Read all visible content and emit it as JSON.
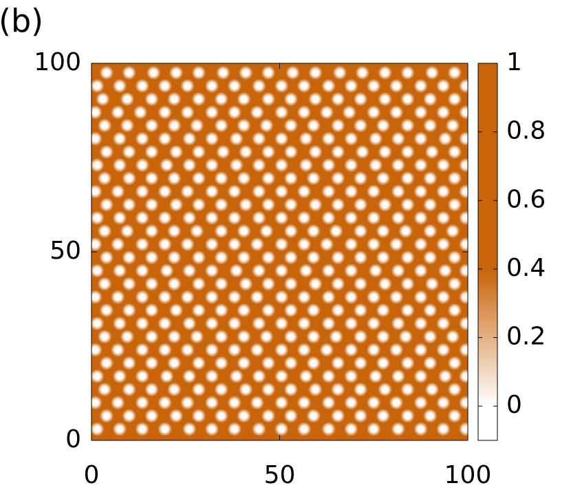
{
  "chart_data": {
    "type": "heatmap",
    "title": "(b)",
    "color": "#c86409",
    "xlim": [
      0,
      100
    ],
    "xticks": [
      0,
      50,
      100
    ],
    "ylim": [
      0,
      100
    ],
    "yticks": [
      0,
      50,
      100
    ],
    "zlim": [
      -0.1,
      1
    ],
    "zticks": [
      0,
      0.2,
      0.4,
      0.6,
      0.8,
      1
    ],
    "colormap": [
      {
        "value": 0,
        "color": "#ffffff"
      },
      {
        "value": 0.4,
        "color": "#c86409"
      }
    ],
    "spot_rows": [
      {
        "y": 97.5,
        "x": [
          4,
          10,
          16.5,
          22.5,
          28.5,
          35,
          41,
          47,
          53.5,
          59.5,
          66,
          72,
          78,
          84,
          90.5,
          96.5
        ]
      },
      {
        "y": 94,
        "x": [
          1.5,
          7.5,
          13.5,
          19.5,
          25.5,
          32,
          38,
          44.5,
          50.5,
          56.5,
          63,
          69,
          75,
          81,
          87.5,
          93.5,
          99.5
        ]
      },
      {
        "y": 90.5,
        "x": [
          3,
          9.5,
          16,
          22,
          28.5,
          34.5,
          40.5,
          47,
          53,
          59.5,
          65.5,
          71.5,
          78,
          84,
          90,
          96.5
        ]
      },
      {
        "y": 87,
        "x": [
          1,
          7,
          13,
          19.5,
          25.5,
          32,
          38,
          44,
          50.5,
          56.5,
          62.5,
          68.5,
          75,
          81,
          87.5,
          93.5,
          99.5
        ]
      },
      {
        "y": 83.5,
        "x": [
          3.5,
          9.5,
          16,
          22,
          28,
          34.5,
          40.5,
          46.5,
          53,
          59,
          65.5,
          71.5,
          77.5,
          84,
          90,
          96
        ]
      },
      {
        "y": 80,
        "x": [
          1,
          7.5,
          13.5,
          19.5,
          26,
          32,
          38.5,
          44.5,
          50.5,
          57,
          63,
          69,
          75.5,
          81.5,
          87.5,
          94,
          99.5
        ]
      },
      {
        "y": 76.5,
        "x": [
          4,
          10,
          16,
          22.5,
          28.5,
          35,
          41,
          47,
          53,
          59.5,
          65.5,
          72,
          78,
          84,
          90.5,
          96.5
        ]
      },
      {
        "y": 73,
        "x": [
          1.5,
          7.5,
          13.5,
          20,
          26,
          32,
          38.5,
          44.5,
          50.5,
          57,
          63,
          69,
          75.5,
          81.5,
          87.5,
          93.5,
          99.5
        ]
      },
      {
        "y": 69.5,
        "x": [
          3.5,
          10,
          16,
          22,
          28.5,
          34.5,
          40.5,
          47,
          53,
          59,
          65.5,
          71.5,
          77.5,
          84,
          90,
          96.5
        ]
      },
      {
        "y": 66,
        "x": [
          1,
          7,
          13.5,
          19.5,
          25.5,
          32,
          38,
          44.5,
          50.5,
          56.5,
          63,
          69,
          75,
          81.5,
          87.5,
          93.5,
          99.5
        ]
      },
      {
        "y": 62.5,
        "x": [
          4,
          10,
          16,
          22.5,
          28.5,
          34.5,
          41,
          47,
          53,
          59.5,
          65.5,
          71.5,
          78,
          84,
          90,
          96.5
        ]
      },
      {
        "y": 59,
        "x": [
          1.5,
          7.5,
          13.5,
          19.5,
          26,
          32,
          38,
          44.5,
          50.5,
          56.5,
          63,
          69,
          75,
          81.5,
          87.5,
          93.5,
          99.5
        ]
      },
      {
        "y": 55.5,
        "x": [
          3.5,
          9.5,
          16,
          22,
          28,
          34.5,
          40.5,
          46.5,
          53,
          59,
          65,
          71.5,
          77.5,
          83.5,
          90,
          96
        ]
      },
      {
        "y": 52,
        "x": [
          1,
          7,
          13.5,
          19.5,
          25.5,
          32,
          38,
          44,
          50.5,
          56.5,
          62.5,
          69,
          75,
          81,
          87.5,
          93.5,
          99.5
        ]
      },
      {
        "y": 48.5,
        "x": [
          4,
          10,
          16,
          22,
          28.5,
          34.5,
          40.5,
          47,
          53,
          59,
          65.5,
          71.5,
          77.5,
          84,
          90,
          96.5
        ]
      },
      {
        "y": 45,
        "x": [
          1.5,
          7.5,
          13.5,
          20,
          26,
          32,
          38.5,
          44.5,
          50.5,
          57,
          63,
          69,
          75.5,
          81.5,
          87.5,
          94,
          99.5
        ]
      },
      {
        "y": 41.5,
        "x": [
          3.5,
          10,
          16,
          22,
          28.5,
          34.5,
          41,
          47,
          53,
          59.5,
          65.5,
          71.5,
          78,
          84,
          90.5,
          96.5
        ]
      },
      {
        "y": 38,
        "x": [
          1,
          7,
          13.5,
          19.5,
          25.5,
          32,
          38,
          44,
          50.5,
          56.5,
          63,
          69,
          75,
          81,
          87.5,
          93.5,
          99.5
        ]
      },
      {
        "y": 34.5,
        "x": [
          4,
          10,
          16,
          22.5,
          28.5,
          34.5,
          40.5,
          47,
          53,
          59,
          65.5,
          71.5,
          77.5,
          84,
          90,
          96.5
        ]
      },
      {
        "y": 31,
        "x": [
          1.5,
          7.5,
          13.5,
          19.5,
          26,
          32,
          38,
          44.5,
          50.5,
          56.5,
          63,
          69,
          75,
          81.5,
          87.5,
          93.5,
          99.5
        ]
      },
      {
        "y": 27.5,
        "x": [
          3.5,
          9.5,
          16,
          22,
          28,
          34.5,
          40.5,
          46.5,
          53,
          59,
          65,
          71.5,
          77.5,
          83.5,
          90,
          96
        ]
      },
      {
        "y": 24,
        "x": [
          1,
          7,
          13.5,
          19.5,
          25.5,
          32,
          38,
          44,
          50.5,
          56.5,
          62.5,
          69,
          75,
          81,
          87.5,
          93.5,
          99.5
        ]
      },
      {
        "y": 20.5,
        "x": [
          4,
          10,
          16,
          22,
          28.5,
          34.5,
          40.5,
          47,
          53,
          59,
          65.5,
          71.5,
          77.5,
          84,
          90,
          96.5
        ]
      },
      {
        "y": 17,
        "x": [
          1.5,
          7.5,
          13.5,
          20,
          26,
          32,
          38.5,
          44.5,
          50.5,
          57,
          63,
          69,
          75.5,
          81.5,
          87.5,
          94,
          99.5
        ]
      },
      {
        "y": 13.5,
        "x": [
          3.5,
          10,
          16,
          22,
          28.5,
          34.5,
          41,
          47,
          53,
          59.5,
          65.5,
          71.5,
          78,
          84,
          90.5,
          96.5
        ]
      },
      {
        "y": 10,
        "x": [
          1,
          7,
          13.5,
          19.5,
          25.5,
          32,
          38,
          44,
          50.5,
          56.5,
          63,
          69,
          75,
          81,
          87.5,
          93.5,
          99.5
        ]
      },
      {
        "y": 6.5,
        "x": [
          4,
          10,
          16,
          22.5,
          28.5,
          34.5,
          40.5,
          47,
          53,
          59,
          65.5,
          71.5,
          77.5,
          84,
          90,
          96.5
        ]
      },
      {
        "y": 3,
        "x": [
          1.5,
          7.5,
          13.5,
          19.5,
          26,
          32,
          38,
          44.5,
          50.5,
          56.5,
          63,
          69,
          75,
          81.5,
          87.5,
          93.5,
          99.5
        ]
      }
    ]
  }
}
